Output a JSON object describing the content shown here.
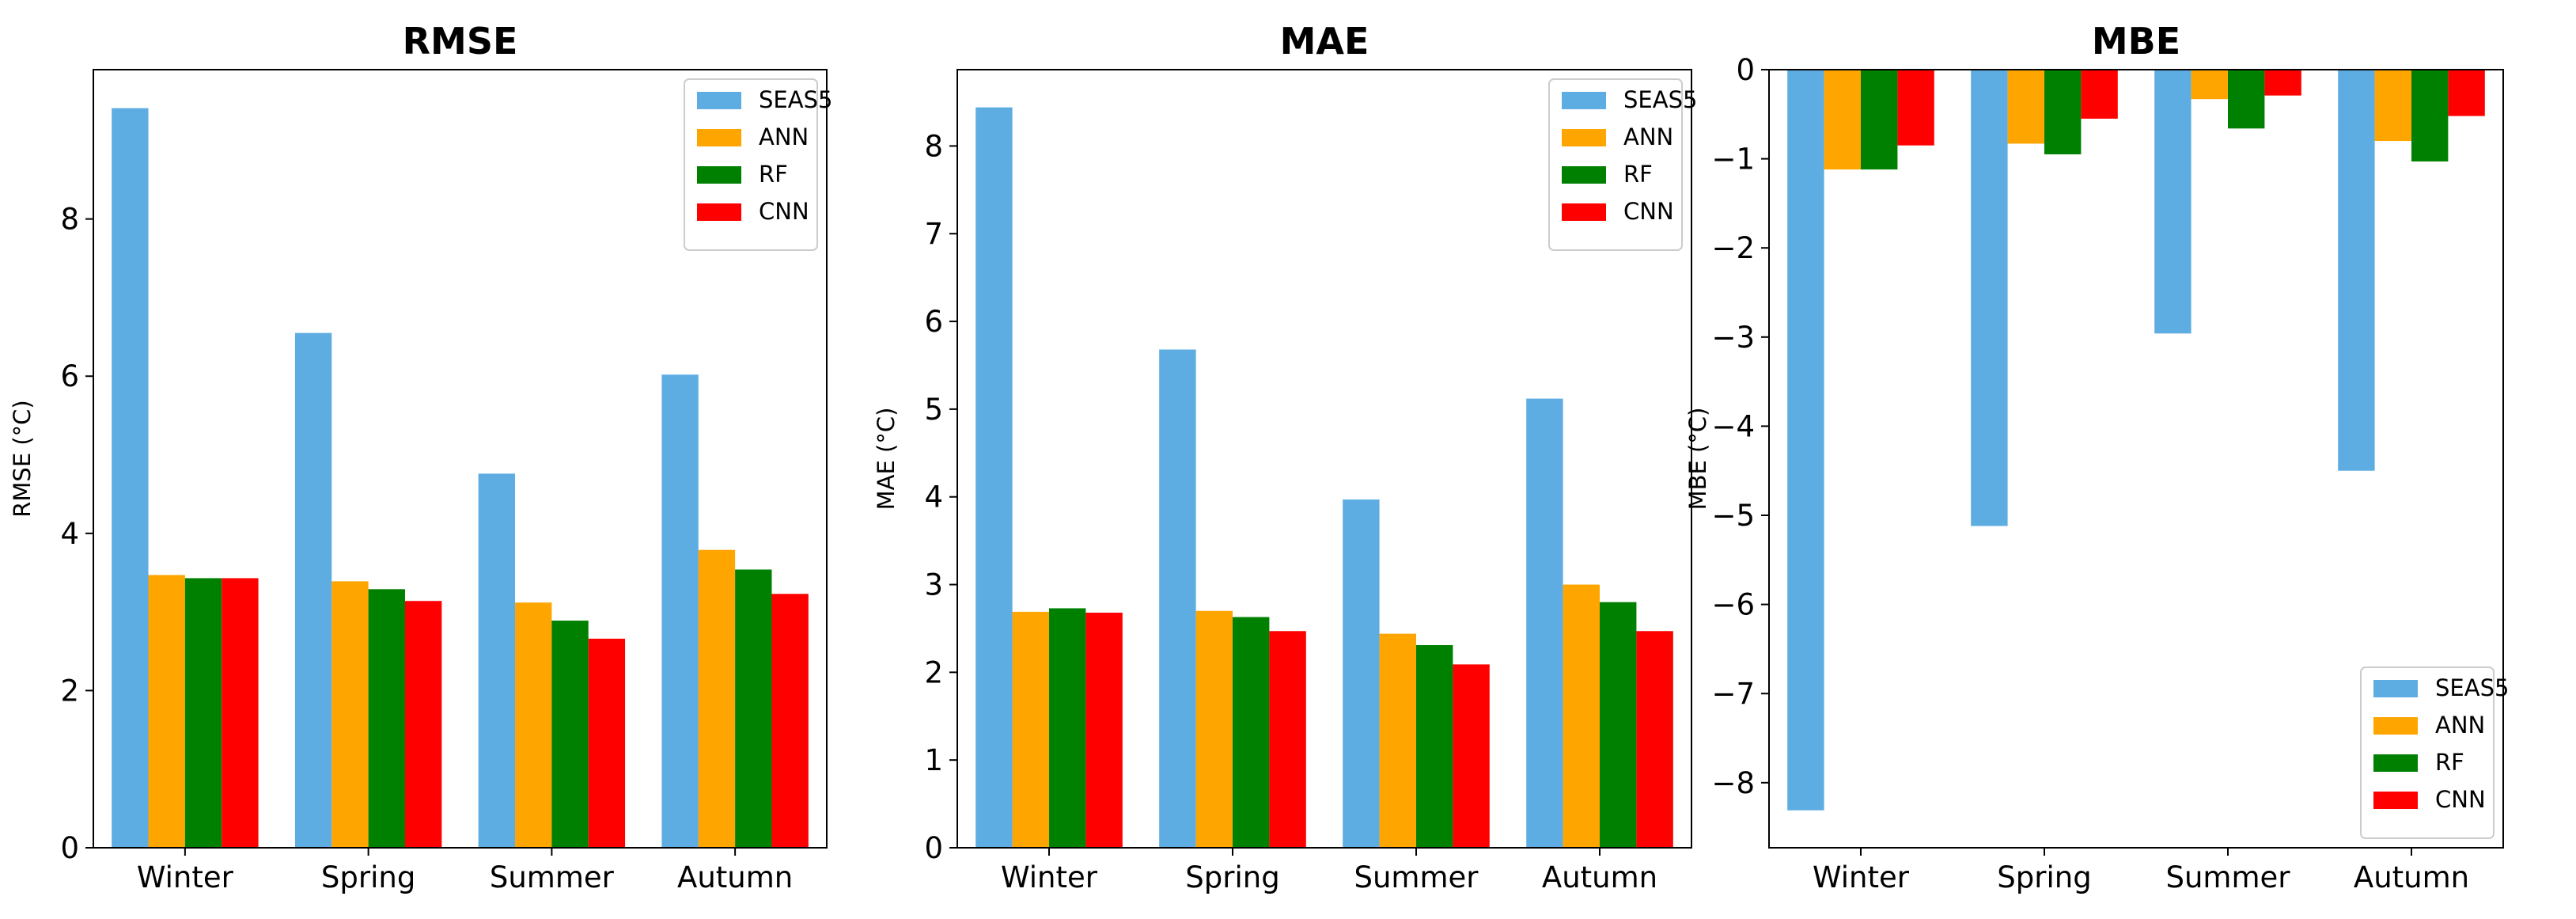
{
  "colors": {
    "SEAS5": "#5DADE2",
    "ANN": "#FFA500",
    "RF": "#008000",
    "CNN": "#FF0000"
  },
  "chart_data": [
    {
      "type": "bar",
      "title": "RMSE",
      "xlabel": "",
      "ylabel": "RMSE (°C)",
      "ylim": [
        0,
        9.9
      ],
      "yticks": [
        0,
        2,
        4,
        6,
        8
      ],
      "legend_position": "top-right",
      "categories": [
        "Winter",
        "Spring",
        "Summer",
        "Autumn"
      ],
      "series": [
        {
          "name": "SEAS5",
          "values": [
            9.41,
            6.55,
            4.76,
            6.02
          ]
        },
        {
          "name": "ANN",
          "values": [
            3.47,
            3.39,
            3.12,
            3.79
          ]
        },
        {
          "name": "RF",
          "values": [
            3.43,
            3.29,
            2.89,
            3.54
          ]
        },
        {
          "name": "CNN",
          "values": [
            3.43,
            3.14,
            2.66,
            3.23
          ]
        }
      ]
    },
    {
      "type": "bar",
      "title": "MAE",
      "xlabel": "",
      "ylabel": "MAE (°C)",
      "ylim": [
        0,
        8.87
      ],
      "yticks": [
        0,
        1,
        2,
        3,
        4,
        5,
        6,
        7,
        8
      ],
      "legend_position": "top-right",
      "categories": [
        "Winter",
        "Spring",
        "Summer",
        "Autumn"
      ],
      "series": [
        {
          "name": "SEAS5",
          "values": [
            8.44,
            5.68,
            3.97,
            5.12
          ]
        },
        {
          "name": "ANN",
          "values": [
            2.69,
            2.7,
            2.44,
            3.0
          ]
        },
        {
          "name": "RF",
          "values": [
            2.73,
            2.63,
            2.31,
            2.8
          ]
        },
        {
          "name": "CNN",
          "values": [
            2.68,
            2.47,
            2.09,
            2.47
          ]
        }
      ]
    },
    {
      "type": "bar",
      "title": "MBE",
      "xlabel": "",
      "ylabel": "MBE (°C)",
      "ylim": [
        -8.73,
        0
      ],
      "yticks": [
        0,
        -1,
        -2,
        -3,
        -4,
        -5,
        -6,
        -7,
        -8
      ],
      "legend_position": "bottom-right",
      "categories": [
        "Winter",
        "Spring",
        "Summer",
        "Autumn"
      ],
      "series": [
        {
          "name": "SEAS5",
          "values": [
            -8.31,
            -5.12,
            -2.96,
            -4.5
          ]
        },
        {
          "name": "ANN",
          "values": [
            -1.12,
            -0.83,
            -0.33,
            -0.8
          ]
        },
        {
          "name": "RF",
          "values": [
            -1.12,
            -0.95,
            -0.66,
            -1.03
          ]
        },
        {
          "name": "CNN",
          "values": [
            -0.85,
            -0.55,
            -0.29,
            -0.52
          ]
        }
      ]
    }
  ]
}
